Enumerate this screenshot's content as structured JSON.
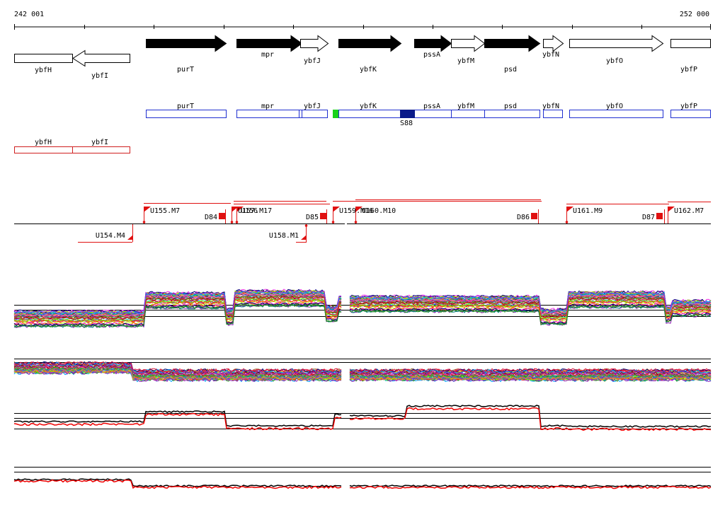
{
  "ruler": {
    "start_label": "242 001",
    "end_label": "252 000"
  },
  "colors": {
    "forward_gene": "#000000",
    "reverse_gene": "#ffffff",
    "operon_blue": "#1f2fd0",
    "operon_red": "#d01f1f",
    "segment_red": "#e01010",
    "highlight_green": "#19d219",
    "highlight_navy": "#0a1a8a",
    "profile_red": "#ee0000",
    "profile_black": "#000000"
  },
  "genes": [
    {
      "id": "gene-ybfh",
      "label": "ybfH",
      "strand": "none",
      "filled": false
    },
    {
      "id": "gene-ybfi",
      "label": "ybfI",
      "strand": "reverse",
      "filled": false
    },
    {
      "id": "gene-purt",
      "label": "purT",
      "strand": "forward",
      "filled": true
    },
    {
      "id": "gene-mpr",
      "label": "mpr",
      "strand": "forward",
      "filled": true
    },
    {
      "id": "gene-ybfj",
      "label": "ybfJ",
      "strand": "forward",
      "filled": false
    },
    {
      "id": "gene-ybfk",
      "label": "ybfK",
      "strand": "forward",
      "filled": true
    },
    {
      "id": "gene-pssa",
      "label": "pssA",
      "strand": "forward",
      "filled": true
    },
    {
      "id": "gene-ybfm",
      "label": "ybfM",
      "strand": "forward",
      "filled": false
    },
    {
      "id": "gene-psd",
      "label": "psd",
      "strand": "forward",
      "filled": true
    },
    {
      "id": "gene-ybfn",
      "label": "ybfN",
      "strand": "forward",
      "filled": false
    },
    {
      "id": "gene-ybfo",
      "label": "ybfO",
      "strand": "forward",
      "filled": false
    },
    {
      "id": "gene-ybfp",
      "label": "ybfP",
      "strand": "forward",
      "filled": false
    }
  ],
  "operons_forward": [
    {
      "label": "purT"
    },
    {
      "label": "mpr"
    },
    {
      "label": "ybfJ"
    },
    {
      "label": "ybfK"
    },
    {
      "label": "pssA"
    },
    {
      "label": "ybfM"
    },
    {
      "label": "psd"
    },
    {
      "label": "ybfN"
    },
    {
      "label": "ybfO"
    },
    {
      "label": "ybfP"
    }
  ],
  "operon_highlight_label": "S88",
  "operons_reverse": [
    {
      "label": "ybfH"
    },
    {
      "label": "ybfI"
    }
  ],
  "segments_upper": [
    {
      "label": "U155.M7"
    },
    {
      "label": "U157.M17"
    },
    {
      "label": "U156"
    },
    {
      "label": "U159.M16"
    },
    {
      "label": "U160.M10"
    },
    {
      "label": "U161.M9"
    },
    {
      "label": "U162.M7"
    }
  ],
  "segments_upper_right": [
    {
      "label": "D84"
    },
    {
      "label": "D85"
    },
    {
      "label": "D86"
    },
    {
      "label": "D87"
    }
  ],
  "segments_lower": [
    {
      "label": "U154.M4"
    },
    {
      "label": "U158.M1"
    }
  ]
}
